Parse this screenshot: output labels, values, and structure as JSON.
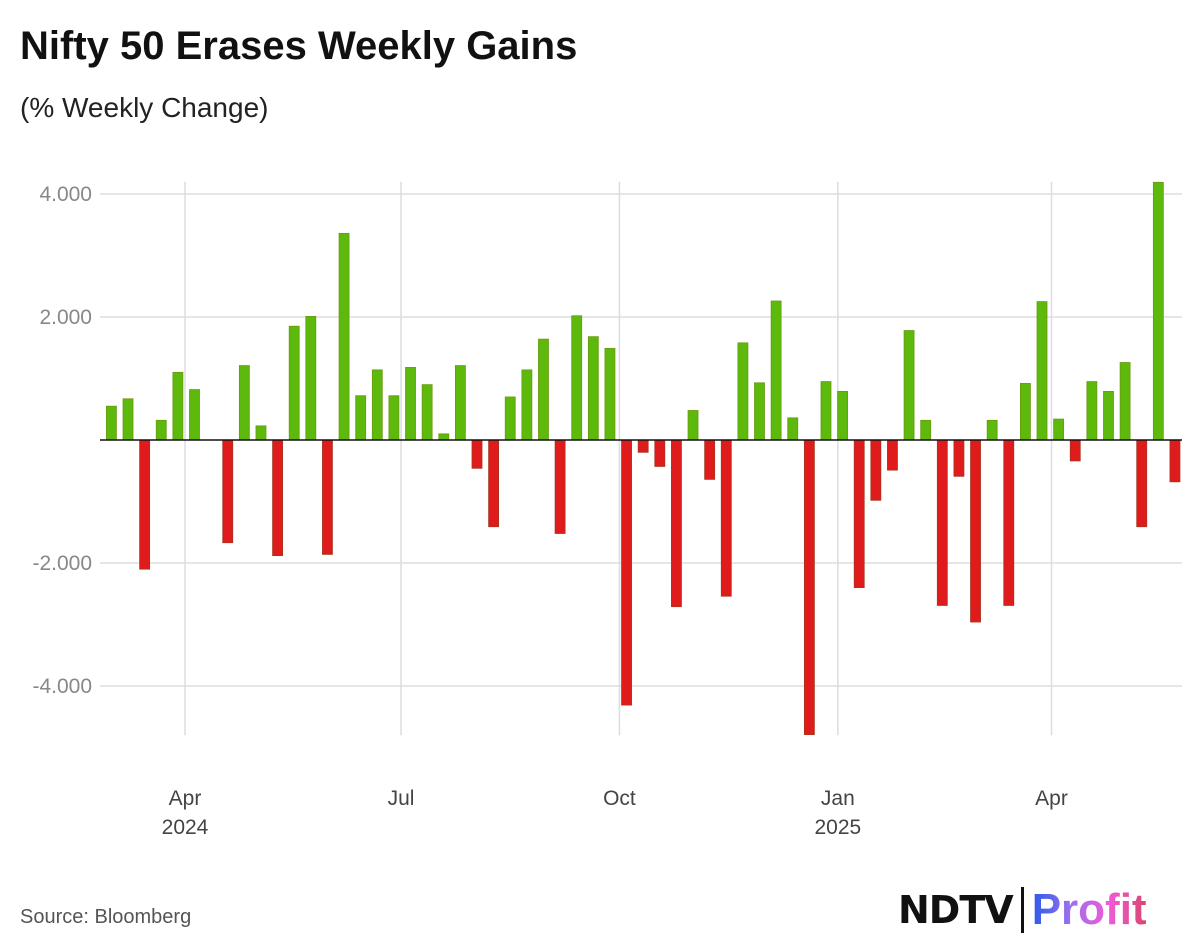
{
  "title": "Nifty 50 Erases Weekly Gains",
  "subtitle": "(% Weekly Change)",
  "source": "Source: Bloomberg",
  "logo": {
    "left": "NDTV",
    "right": "Profit"
  },
  "colors": {
    "positive": "#5DB90B",
    "negative": "#E01B1B",
    "grid": "#dddddd",
    "zero_line": "#111111"
  },
  "chart_data": {
    "type": "bar",
    "title": "Nifty 50 Erases Weekly Gains",
    "subtitle": "(% Weekly Change)",
    "ylim": [
      -4.8,
      4.2
    ],
    "grid": true,
    "y_ticks": [
      {
        "value": 4,
        "label": "4.000"
      },
      {
        "value": 2,
        "label": "2.000"
      },
      {
        "value": -2,
        "label": "-2.000"
      },
      {
        "value": -4,
        "label": "-4.000"
      }
    ],
    "x_ticks": [
      {
        "date": "2024-04-01",
        "label": "Apr",
        "sub": "2024"
      },
      {
        "date": "2024-07-01",
        "label": "Jul",
        "sub": ""
      },
      {
        "date": "2024-10-01",
        "label": "Oct",
        "sub": ""
      },
      {
        "date": "2025-01-01",
        "label": "Jan",
        "sub": "2025"
      },
      {
        "date": "2025-04-01",
        "label": "Apr",
        "sub": ""
      }
    ],
    "x": [
      "2024-03-01",
      "2024-03-08",
      "2024-03-15",
      "2024-03-22",
      "2024-03-29",
      "2024-04-05",
      "2024-04-19",
      "2024-04-26",
      "2024-05-03",
      "2024-05-10",
      "2024-05-17",
      "2024-05-24",
      "2024-05-31",
      "2024-06-07",
      "2024-06-14",
      "2024-06-21",
      "2024-06-28",
      "2024-07-05",
      "2024-07-12",
      "2024-07-19",
      "2024-07-26",
      "2024-08-02",
      "2024-08-09",
      "2024-08-16",
      "2024-08-23",
      "2024-08-30",
      "2024-09-06",
      "2024-09-13",
      "2024-09-20",
      "2024-09-27",
      "2024-10-04",
      "2024-10-11",
      "2024-10-18",
      "2024-10-25",
      "2024-11-01",
      "2024-11-08",
      "2024-11-15",
      "2024-11-22",
      "2024-11-29",
      "2024-12-06",
      "2024-12-13",
      "2024-12-20",
      "2024-12-27",
      "2025-01-03",
      "2025-01-10",
      "2025-01-17",
      "2025-01-24",
      "2025-01-31",
      "2025-02-07",
      "2025-02-14",
      "2025-02-21",
      "2025-02-28",
      "2025-03-07",
      "2025-03-14",
      "2025-03-21",
      "2025-03-28",
      "2025-04-04",
      "2025-04-11",
      "2025-04-18",
      "2025-04-25",
      "2025-05-02",
      "2025-05-09",
      "2025-05-16",
      "2025-05-23"
    ],
    "values": [
      0.55,
      0.67,
      -2.1,
      0.32,
      1.1,
      0.82,
      -1.67,
      1.21,
      0.23,
      -1.88,
      1.85,
      2.01,
      -1.86,
      3.36,
      0.72,
      1.14,
      0.72,
      1.18,
      0.9,
      0.1,
      1.21,
      -0.46,
      -1.41,
      0.7,
      1.14,
      1.64,
      -1.52,
      2.02,
      1.68,
      1.49,
      -4.31,
      -0.2,
      -0.43,
      -2.71,
      0.48,
      -0.64,
      -2.54,
      1.58,
      0.93,
      2.26,
      0.36,
      -4.79,
      0.95,
      0.79,
      -2.4,
      -0.98,
      -0.49,
      1.78,
      0.32,
      -2.69,
      -0.59,
      -2.96,
      0.32,
      -2.69,
      0.92,
      2.25,
      0.34,
      -0.34,
      0.95,
      0.79,
      1.26,
      -1.41,
      4.19,
      -0.68
    ]
  }
}
